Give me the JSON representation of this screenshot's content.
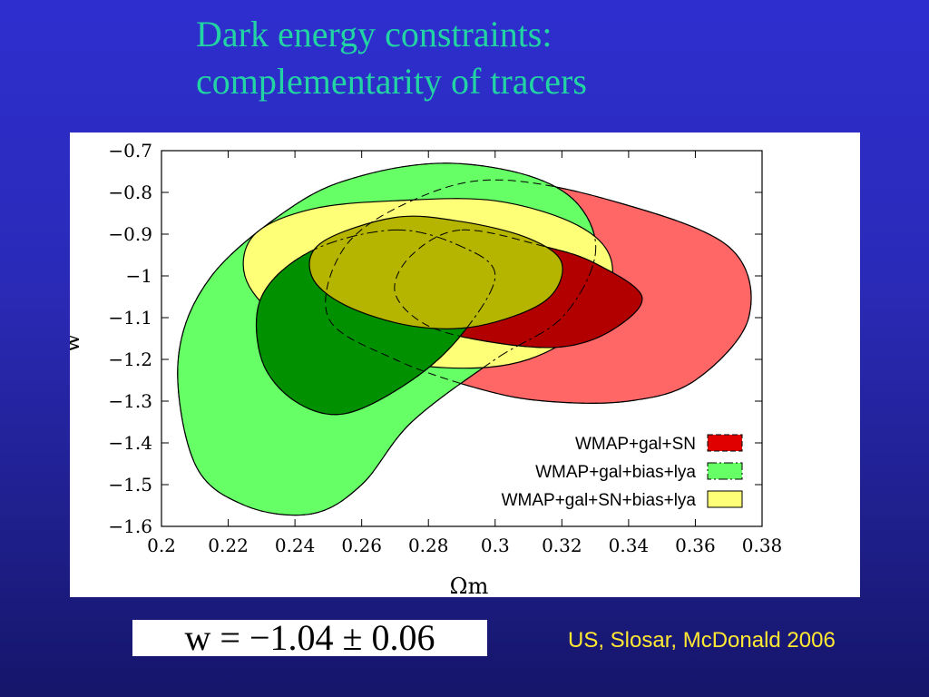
{
  "slide": {
    "title_line1": "Dark energy constraints:",
    "title_line2": "complementarity of tracers",
    "formula": "w = −1.04 ± 0.06",
    "citation": "US, Slosar, McDonald 2006"
  },
  "colors": {
    "background": "#2a2ab8",
    "title": "#22d3a3",
    "citation": "#ffe833"
  },
  "chart_data": {
    "type": "contour",
    "title": "",
    "xlabel": "Ωm",
    "ylabel": "w",
    "xlim": [
      0.2,
      0.38
    ],
    "ylim": [
      -1.6,
      -0.7
    ],
    "xticks": [
      0.2,
      0.22,
      0.24,
      0.26,
      0.28,
      0.3,
      0.32,
      0.34,
      0.36,
      0.38
    ],
    "xtick_labels": [
      "0.2",
      "0.22",
      "0.24",
      "0.26",
      "0.28",
      "0.3",
      "0.32",
      "0.34",
      "0.36",
      "0.38"
    ],
    "yticks": [
      -0.7,
      -0.8,
      -0.9,
      -1,
      -1.1,
      -1.2,
      -1.3,
      -1.4,
      -1.5,
      -1.6
    ],
    "ytick_labels": [
      "−0.7",
      "−0.8",
      "−0.9",
      "−1",
      "−1.1",
      "−1.2",
      "−1.3",
      "−1.4",
      "−1.5",
      "−1.6"
    ],
    "legend_position": "bottom-right",
    "series": [
      {
        "name": "WMAP+gal+SN",
        "colors": {
          "outer": "#ff6666",
          "inner": "#b20000"
        },
        "outer": [
          [
            0.3,
            -0.77
          ],
          [
            0.335,
            -0.82
          ],
          [
            0.37,
            -0.93
          ],
          [
            0.376,
            -1.1
          ],
          [
            0.36,
            -1.25
          ],
          [
            0.34,
            -1.3
          ],
          [
            0.315,
            -1.3
          ],
          [
            0.295,
            -1.27
          ],
          [
            0.27,
            -1.2
          ],
          [
            0.25,
            -1.1
          ],
          [
            0.255,
            -0.93
          ],
          [
            0.275,
            -0.82
          ]
        ],
        "inner": [
          [
            0.29,
            -0.89
          ],
          [
            0.315,
            -0.93
          ],
          [
            0.33,
            -0.97
          ],
          [
            0.344,
            -1.05
          ],
          [
            0.335,
            -1.13
          ],
          [
            0.32,
            -1.17
          ],
          [
            0.3,
            -1.16
          ],
          [
            0.28,
            -1.12
          ],
          [
            0.27,
            -1.04
          ],
          [
            0.275,
            -0.95
          ]
        ]
      },
      {
        "name": "WMAP+gal+bias+lya",
        "colors": {
          "outer": "#66ff66",
          "inner": "#009000"
        },
        "outer": [
          [
            0.285,
            -0.73
          ],
          [
            0.31,
            -0.76
          ],
          [
            0.325,
            -0.83
          ],
          [
            0.33,
            -0.95
          ],
          [
            0.32,
            -1.1
          ],
          [
            0.3,
            -1.2
          ],
          [
            0.275,
            -1.35
          ],
          [
            0.26,
            -1.5
          ],
          [
            0.245,
            -1.57
          ],
          [
            0.225,
            -1.55
          ],
          [
            0.21,
            -1.45
          ],
          [
            0.205,
            -1.2
          ],
          [
            0.215,
            -1.0
          ],
          [
            0.24,
            -0.83
          ],
          [
            0.26,
            -0.76
          ]
        ],
        "inner": [
          [
            0.27,
            -0.89
          ],
          [
            0.29,
            -0.93
          ],
          [
            0.3,
            -1.0
          ],
          [
            0.29,
            -1.14
          ],
          [
            0.275,
            -1.25
          ],
          [
            0.255,
            -1.33
          ],
          [
            0.24,
            -1.3
          ],
          [
            0.23,
            -1.2
          ],
          [
            0.23,
            -1.05
          ],
          [
            0.245,
            -0.94
          ]
        ]
      },
      {
        "name": "WMAP+gal+SN+bias+lya",
        "colors": {
          "outer": "#ffff77",
          "inner": "#b5b500"
        },
        "outer": [
          [
            0.27,
            -0.82
          ],
          [
            0.3,
            -0.82
          ],
          [
            0.325,
            -0.88
          ],
          [
            0.335,
            -0.97
          ],
          [
            0.33,
            -1.1
          ],
          [
            0.31,
            -1.2
          ],
          [
            0.285,
            -1.22
          ],
          [
            0.255,
            -1.18
          ],
          [
            0.235,
            -1.1
          ],
          [
            0.225,
            -1.0
          ],
          [
            0.228,
            -0.9
          ],
          [
            0.245,
            -0.84
          ]
        ],
        "inner": [
          [
            0.27,
            -0.86
          ],
          [
            0.29,
            -0.87
          ],
          [
            0.31,
            -0.91
          ],
          [
            0.32,
            -0.97
          ],
          [
            0.315,
            -1.06
          ],
          [
            0.295,
            -1.12
          ],
          [
            0.275,
            -1.12
          ],
          [
            0.255,
            -1.07
          ],
          [
            0.245,
            -1.0
          ],
          [
            0.248,
            -0.92
          ]
        ]
      }
    ]
  }
}
